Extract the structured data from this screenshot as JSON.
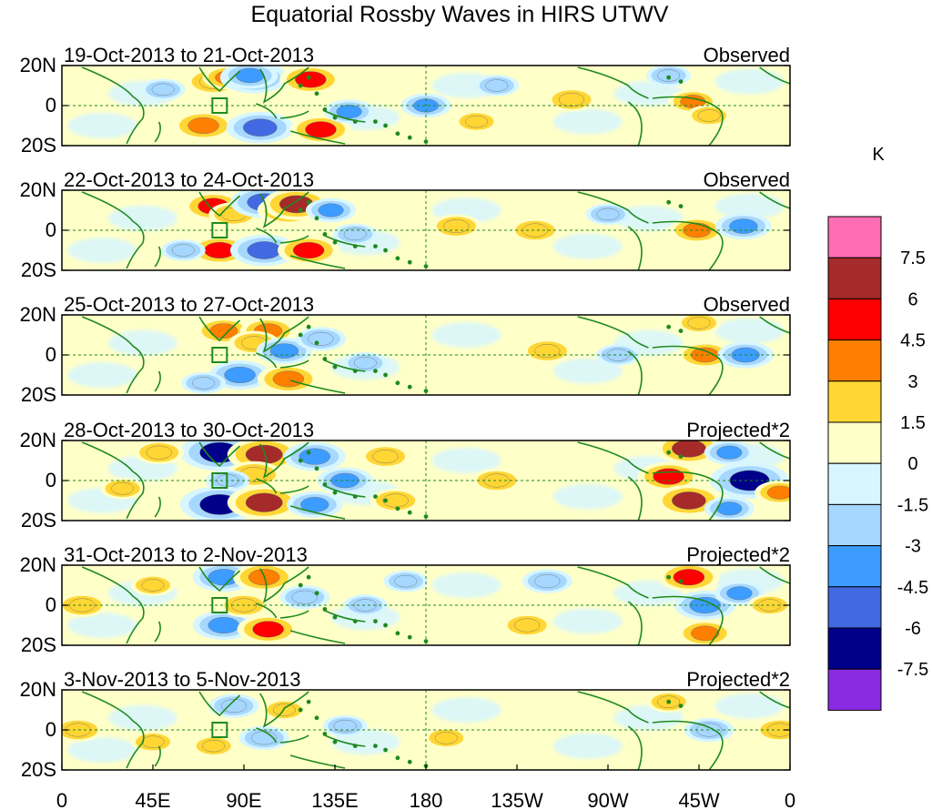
{
  "chart_data": {
    "type": "heatmap",
    "title": "Equatorial Rossby Waves in HIRS UTWV",
    "colorbar_unit": "K",
    "colorbar_ticks": [
      "7.5",
      "6",
      "4.5",
      "3",
      "1.5",
      "0",
      "-1.5",
      "-3",
      "-4.5",
      "-6",
      "-7.5"
    ],
    "colorbar_colors": [
      "#ff6eb4",
      "#a52a2a",
      "#ff0000",
      "#ff7f00",
      "#ffd634",
      "#ffffc8",
      "#d7f6ff",
      "#a6d7ff",
      "#3c9cff",
      "#4169e1",
      "#00008b",
      "#8a2be2"
    ],
    "x_tick_labels": [
      "0",
      "45E",
      "90E",
      "135E",
      "180",
      "135W",
      "90W",
      "45W",
      "0"
    ],
    "y_tick_labels": [
      "20N",
      "0",
      "20S"
    ],
    "xlim": [
      0,
      360
    ],
    "ylim": [
      -20,
      20
    ],
    "panels": [
      {
        "date_range": "19-Oct-2013 to 21-Oct-2013",
        "label": "Observed",
        "blobs": [
          [
            75,
            12,
            4,
            "#ffd634"
          ],
          [
            82,
            14,
            3,
            "#ff7f00"
          ],
          [
            95,
            14,
            -6,
            "#4169e1"
          ],
          [
            93,
            15,
            -4,
            "#3c9cff"
          ],
          [
            125,
            12,
            4,
            "#ff7f00"
          ],
          [
            123,
            13,
            5,
            "#ff0000"
          ],
          [
            70,
            -10,
            5,
            "#ff7f00"
          ],
          [
            98,
            -11,
            -6,
            "#4169e1"
          ],
          [
            128,
            -12,
            5,
            "#ff0000"
          ],
          [
            142,
            -3,
            -3,
            "#3c9cff"
          ],
          [
            180,
            0,
            -3,
            "#3c9cff"
          ],
          [
            205,
            -8,
            2,
            "#ffd634"
          ],
          [
            252,
            3,
            3,
            "#ffd634"
          ],
          [
            312,
            2,
            3,
            "#ff7f00"
          ],
          [
            320,
            -5,
            2,
            "#ffd634"
          ],
          [
            50,
            8,
            -2,
            "#a6d7ff"
          ],
          [
            215,
            10,
            -2,
            "#a6d7ff"
          ],
          [
            300,
            15,
            -2,
            "#a6d7ff"
          ]
        ]
      },
      {
        "date_range": "22-Oct-2013 to 24-Oct-2013",
        "label": "Observed",
        "blobs": [
          [
            75,
            12,
            5,
            "#ff0000"
          ],
          [
            85,
            8,
            3,
            "#ffd634"
          ],
          [
            100,
            14,
            -6,
            "#4169e1"
          ],
          [
            112,
            10,
            5,
            "#ff7f00"
          ],
          [
            116,
            13,
            6,
            "#a52a2a"
          ],
          [
            78,
            -10,
            5,
            "#ff0000"
          ],
          [
            100,
            -10,
            -6,
            "#4169e1"
          ],
          [
            122,
            -10,
            5,
            "#ff0000"
          ],
          [
            133,
            10,
            -3,
            "#3c9cff"
          ],
          [
            145,
            -2,
            -2,
            "#a6d7ff"
          ],
          [
            195,
            2,
            3,
            "#ffd634"
          ],
          [
            234,
            0,
            3,
            "#ffd634"
          ],
          [
            314,
            0,
            4,
            "#ff7f00"
          ],
          [
            337,
            2,
            -4,
            "#3c9cff"
          ],
          [
            60,
            -10,
            -2,
            "#a6d7ff"
          ],
          [
            270,
            8,
            -2,
            "#a6d7ff"
          ]
        ]
      },
      {
        "date_range": "25-Oct-2013 to 27-Oct-2013",
        "label": "Observed",
        "blobs": [
          [
            80,
            12,
            4,
            "#ff7f00"
          ],
          [
            102,
            12,
            4,
            "#ff7f00"
          ],
          [
            95,
            6,
            3,
            "#ffd634"
          ],
          [
            88,
            -10,
            -5,
            "#3c9cff"
          ],
          [
            110,
            2,
            -4,
            "#3c9cff"
          ],
          [
            112,
            -12,
            5,
            "#ff7f00"
          ],
          [
            128,
            8,
            -3,
            "#a6d7ff"
          ],
          [
            150,
            -4,
            -2,
            "#a6d7ff"
          ],
          [
            240,
            2,
            3,
            "#ffd634"
          ],
          [
            275,
            0,
            -2,
            "#a6d7ff"
          ],
          [
            318,
            0,
            4,
            "#ff7f00"
          ],
          [
            338,
            0,
            -4,
            "#3c9cff"
          ],
          [
            315,
            16,
            2,
            "#ffd634"
          ],
          [
            70,
            -14,
            -2,
            "#a6d7ff"
          ]
        ]
      },
      {
        "date_range": "28-Oct-2013 to 30-Oct-2013",
        "label": "Projected*2",
        "blobs": [
          [
            78,
            14,
            -8,
            "#00008b"
          ],
          [
            100,
            13,
            7,
            "#a52a2a"
          ],
          [
            95,
            3,
            4,
            "#ffd634"
          ],
          [
            82,
            0,
            -2,
            "#a6d7ff"
          ],
          [
            78,
            -12,
            -8,
            "#00008b"
          ],
          [
            100,
            -11,
            7,
            "#a52a2a"
          ],
          [
            125,
            12,
            -5,
            "#3c9cff"
          ],
          [
            125,
            -12,
            -4,
            "#3c9cff"
          ],
          [
            140,
            0,
            -4,
            "#3c9cff"
          ],
          [
            160,
            12,
            3,
            "#ffd634"
          ],
          [
            165,
            -10,
            3,
            "#ffd634"
          ],
          [
            215,
            0,
            3,
            "#ffd634"
          ],
          [
            300,
            2,
            5,
            "#ff0000"
          ],
          [
            310,
            16,
            6,
            "#a52a2a"
          ],
          [
            310,
            -10,
            6,
            "#a52a2a"
          ],
          [
            340,
            0,
            -8,
            "#00008b"
          ],
          [
            330,
            14,
            -3,
            "#3c9cff"
          ],
          [
            330,
            -14,
            -3,
            "#3c9cff"
          ],
          [
            355,
            -6,
            3,
            "#ff7f00"
          ],
          [
            48,
            14,
            3,
            "#ffd634"
          ],
          [
            30,
            -4,
            2,
            "#ffd634"
          ]
        ]
      },
      {
        "date_range": "31-Oct-2013 to 2-Nov-2013",
        "label": "Projected*2",
        "blobs": [
          [
            80,
            14,
            -5,
            "#3c9cff"
          ],
          [
            100,
            14,
            5,
            "#ff7f00"
          ],
          [
            80,
            -10,
            -5,
            "#3c9cff"
          ],
          [
            102,
            -12,
            5,
            "#ff0000"
          ],
          [
            90,
            0,
            3,
            "#ffd634"
          ],
          [
            120,
            4,
            -3,
            "#a6d7ff"
          ],
          [
            150,
            0,
            -2,
            "#a6d7ff"
          ],
          [
            170,
            12,
            -2,
            "#a6d7ff"
          ],
          [
            230,
            -10,
            3,
            "#ffd634"
          ],
          [
            240,
            12,
            -3,
            "#a6d7ff"
          ],
          [
            310,
            14,
            5,
            "#ff0000"
          ],
          [
            318,
            0,
            -5,
            "#3c9cff"
          ],
          [
            318,
            -14,
            4,
            "#ff7f00"
          ],
          [
            335,
            6,
            -3,
            "#3c9cff"
          ],
          [
            10,
            0,
            3,
            "#ffd634"
          ],
          [
            350,
            0,
            2,
            "#ffd634"
          ],
          [
            45,
            10,
            2,
            "#ffd634"
          ]
        ]
      },
      {
        "date_range": "3-Nov-2013 to 5-Nov-2013",
        "label": "Projected*2",
        "blobs": [
          [
            85,
            12,
            -3,
            "#a6d7ff"
          ],
          [
            100,
            -4,
            -3,
            "#a6d7ff"
          ],
          [
            110,
            10,
            2,
            "#ffd634"
          ],
          [
            75,
            -8,
            2,
            "#ffd634"
          ],
          [
            140,
            2,
            -2,
            "#a6d7ff"
          ],
          [
            320,
            0,
            -3,
            "#a6d7ff"
          ],
          [
            300,
            14,
            2,
            "#ffd634"
          ],
          [
            355,
            0,
            3,
            "#ffd634"
          ],
          [
            8,
            0,
            3,
            "#ffd634"
          ],
          [
            190,
            -4,
            2,
            "#ffd634"
          ],
          [
            45,
            -6,
            2,
            "#ffd634"
          ]
        ]
      }
    ]
  }
}
